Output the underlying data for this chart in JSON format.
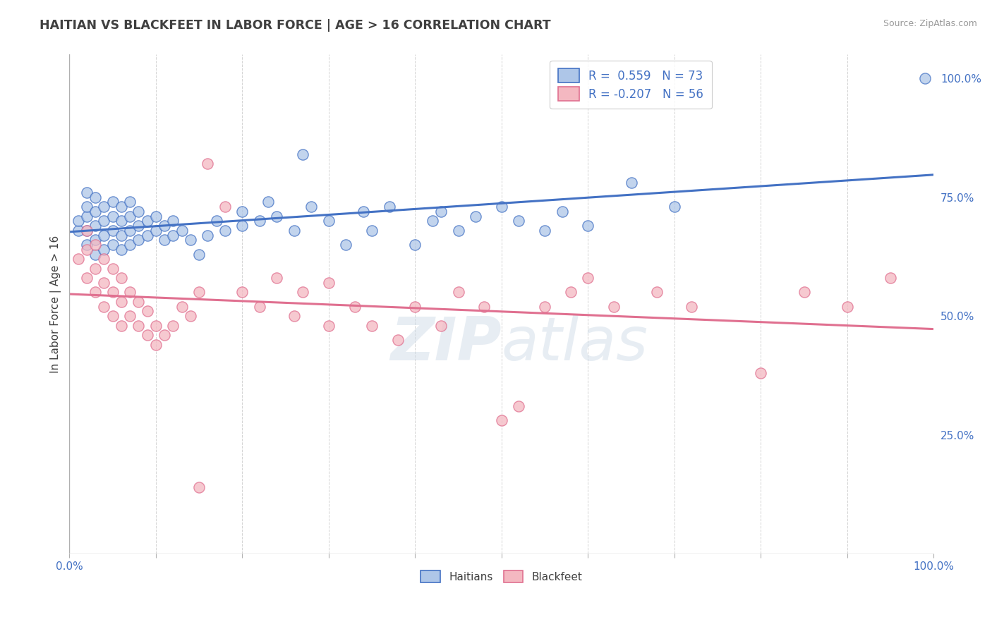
{
  "title": "HAITIAN VS BLACKFEET IN LABOR FORCE | AGE > 16 CORRELATION CHART",
  "source": "Source: ZipAtlas.com",
  "ylabel": "In Labor Force | Age > 16",
  "right_yticks": [
    "100.0%",
    "75.0%",
    "50.0%",
    "25.0%"
  ],
  "right_ytick_vals": [
    1.0,
    0.75,
    0.5,
    0.25
  ],
  "haitian_color": "#aec6e8",
  "blackfeet_color": "#f4b8c1",
  "haitian_line_color": "#4472c4",
  "blackfeet_line_color": "#e07090",
  "title_color": "#404040",
  "source_color": "#999999",
  "background_color": "#ffffff",
  "grid_color": "#c8c8c8",
  "watermark_color": "#d0dce8",
  "xlim": [
    0,
    1
  ],
  "ylim": [
    0,
    1.05
  ],
  "haitian_scatter": [
    [
      0.01,
      0.68
    ],
    [
      0.01,
      0.7
    ],
    [
      0.02,
      0.65
    ],
    [
      0.02,
      0.68
    ],
    [
      0.02,
      0.71
    ],
    [
      0.02,
      0.73
    ],
    [
      0.02,
      0.76
    ],
    [
      0.03,
      0.63
    ],
    [
      0.03,
      0.66
    ],
    [
      0.03,
      0.69
    ],
    [
      0.03,
      0.72
    ],
    [
      0.03,
      0.75
    ],
    [
      0.04,
      0.64
    ],
    [
      0.04,
      0.67
    ],
    [
      0.04,
      0.7
    ],
    [
      0.04,
      0.73
    ],
    [
      0.05,
      0.65
    ],
    [
      0.05,
      0.68
    ],
    [
      0.05,
      0.71
    ],
    [
      0.05,
      0.74
    ],
    [
      0.06,
      0.64
    ],
    [
      0.06,
      0.67
    ],
    [
      0.06,
      0.7
    ],
    [
      0.06,
      0.73
    ],
    [
      0.07,
      0.65
    ],
    [
      0.07,
      0.68
    ],
    [
      0.07,
      0.71
    ],
    [
      0.07,
      0.74
    ],
    [
      0.08,
      0.66
    ],
    [
      0.08,
      0.69
    ],
    [
      0.08,
      0.72
    ],
    [
      0.09,
      0.67
    ],
    [
      0.09,
      0.7
    ],
    [
      0.1,
      0.68
    ],
    [
      0.1,
      0.71
    ],
    [
      0.11,
      0.66
    ],
    [
      0.11,
      0.69
    ],
    [
      0.12,
      0.67
    ],
    [
      0.12,
      0.7
    ],
    [
      0.13,
      0.68
    ],
    [
      0.14,
      0.66
    ],
    [
      0.15,
      0.63
    ],
    [
      0.16,
      0.67
    ],
    [
      0.17,
      0.7
    ],
    [
      0.18,
      0.68
    ],
    [
      0.2,
      0.69
    ],
    [
      0.2,
      0.72
    ],
    [
      0.22,
      0.7
    ],
    [
      0.23,
      0.74
    ],
    [
      0.24,
      0.71
    ],
    [
      0.26,
      0.68
    ],
    [
      0.27,
      0.84
    ],
    [
      0.28,
      0.73
    ],
    [
      0.3,
      0.7
    ],
    [
      0.32,
      0.65
    ],
    [
      0.34,
      0.72
    ],
    [
      0.35,
      0.68
    ],
    [
      0.37,
      0.73
    ],
    [
      0.4,
      0.65
    ],
    [
      0.42,
      0.7
    ],
    [
      0.43,
      0.72
    ],
    [
      0.45,
      0.68
    ],
    [
      0.47,
      0.71
    ],
    [
      0.5,
      0.73
    ],
    [
      0.52,
      0.7
    ],
    [
      0.55,
      0.68
    ],
    [
      0.57,
      0.72
    ],
    [
      0.6,
      0.69
    ],
    [
      0.65,
      0.78
    ],
    [
      0.7,
      0.73
    ],
    [
      0.99,
      1.0
    ]
  ],
  "blackfeet_scatter": [
    [
      0.01,
      0.62
    ],
    [
      0.02,
      0.58
    ],
    [
      0.02,
      0.64
    ],
    [
      0.02,
      0.68
    ],
    [
      0.03,
      0.55
    ],
    [
      0.03,
      0.6
    ],
    [
      0.03,
      0.65
    ],
    [
      0.04,
      0.52
    ],
    [
      0.04,
      0.57
    ],
    [
      0.04,
      0.62
    ],
    [
      0.05,
      0.5
    ],
    [
      0.05,
      0.55
    ],
    [
      0.05,
      0.6
    ],
    [
      0.06,
      0.48
    ],
    [
      0.06,
      0.53
    ],
    [
      0.06,
      0.58
    ],
    [
      0.07,
      0.5
    ],
    [
      0.07,
      0.55
    ],
    [
      0.08,
      0.48
    ],
    [
      0.08,
      0.53
    ],
    [
      0.09,
      0.46
    ],
    [
      0.09,
      0.51
    ],
    [
      0.1,
      0.44
    ],
    [
      0.1,
      0.48
    ],
    [
      0.11,
      0.46
    ],
    [
      0.12,
      0.48
    ],
    [
      0.13,
      0.52
    ],
    [
      0.14,
      0.5
    ],
    [
      0.15,
      0.55
    ],
    [
      0.16,
      0.82
    ],
    [
      0.18,
      0.73
    ],
    [
      0.2,
      0.55
    ],
    [
      0.22,
      0.52
    ],
    [
      0.24,
      0.58
    ],
    [
      0.26,
      0.5
    ],
    [
      0.27,
      0.55
    ],
    [
      0.3,
      0.48
    ],
    [
      0.3,
      0.57
    ],
    [
      0.33,
      0.52
    ],
    [
      0.35,
      0.48
    ],
    [
      0.38,
      0.45
    ],
    [
      0.4,
      0.52
    ],
    [
      0.43,
      0.48
    ],
    [
      0.45,
      0.55
    ],
    [
      0.48,
      0.52
    ],
    [
      0.5,
      0.28
    ],
    [
      0.52,
      0.31
    ],
    [
      0.55,
      0.52
    ],
    [
      0.58,
      0.55
    ],
    [
      0.6,
      0.58
    ],
    [
      0.63,
      0.52
    ],
    [
      0.68,
      0.55
    ],
    [
      0.72,
      0.52
    ],
    [
      0.8,
      0.38
    ],
    [
      0.85,
      0.55
    ],
    [
      0.9,
      0.52
    ],
    [
      0.95,
      0.58
    ],
    [
      0.15,
      0.14
    ]
  ]
}
